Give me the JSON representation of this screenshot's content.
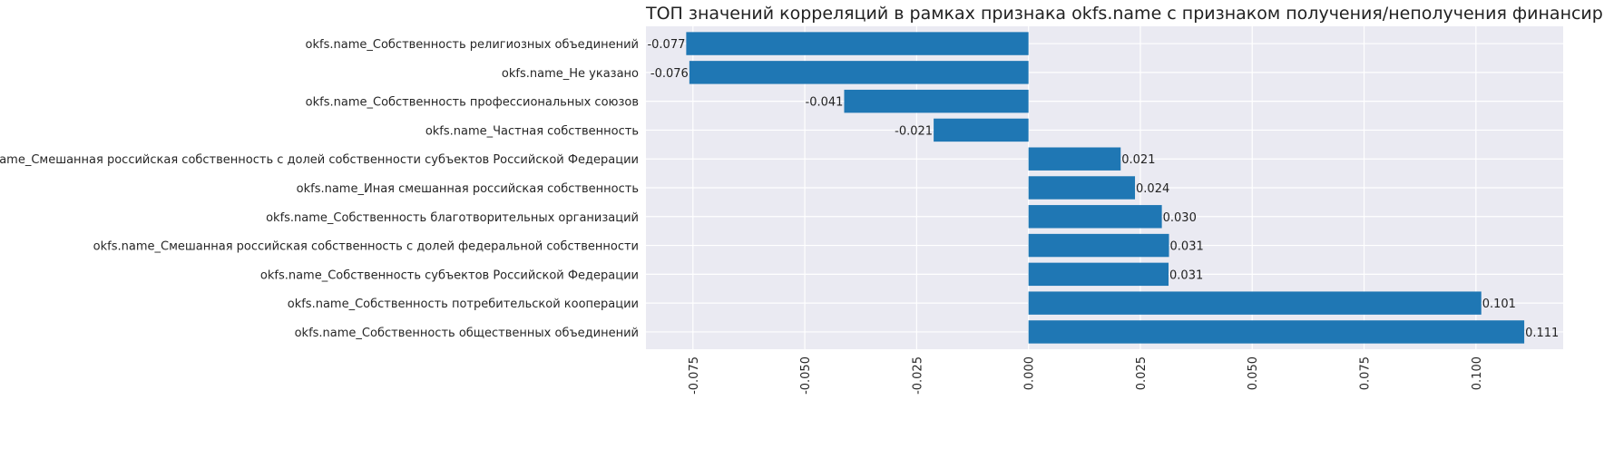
{
  "chart_data": {
    "type": "bar",
    "orientation": "horizontal",
    "title": "ТОП значений корреляций в рамках признака okfs.name с признаком получения/неполучения финансирования",
    "xlabel": "",
    "ylabel": "",
    "xlim": [
      -0.0855,
      0.1195
    ],
    "x_ticks": [
      "-0.075",
      "-0.050",
      "-0.025",
      "0.000",
      "0.025",
      "0.050",
      "0.075",
      "0.100"
    ],
    "x_tick_values": [
      -0.075,
      -0.05,
      -0.025,
      0.0,
      0.025,
      0.05,
      0.075,
      0.1
    ],
    "grid": true,
    "bar_color": "#1f77b4",
    "background_color": "#eaeaf2",
    "categories": [
      "okfs.name_Собственность религиозных объединений",
      "okfs.name_Не указано",
      "okfs.name_Собственность профессиональных союзов",
      "okfs.name_Частная собственность",
      "okfs.name_Смешанная российская собственность с долей собственности субъектов Российской Федерации",
      "okfs.name_Иная смешанная российская собственность",
      "okfs.name_Собственность благотворительных организаций",
      "okfs.name_Смешанная российская собственность с долей федеральной собственности",
      "okfs.name_Собственность субъектов Российской Федерации",
      "okfs.name_Собственность потребительской кооперации",
      "okfs.name_Собственность общественных объединений"
    ],
    "values": [
      -0.0765,
      -0.0758,
      -0.0412,
      -0.0212,
      0.0206,
      0.0238,
      0.0298,
      0.0314,
      0.0313,
      0.1012,
      0.1108
    ],
    "value_labels": [
      "-0.077",
      "-0.076",
      "-0.041",
      "-0.021",
      "0.021",
      "0.024",
      "0.030",
      "0.031",
      "0.031",
      "0.101",
      "0.111"
    ]
  }
}
